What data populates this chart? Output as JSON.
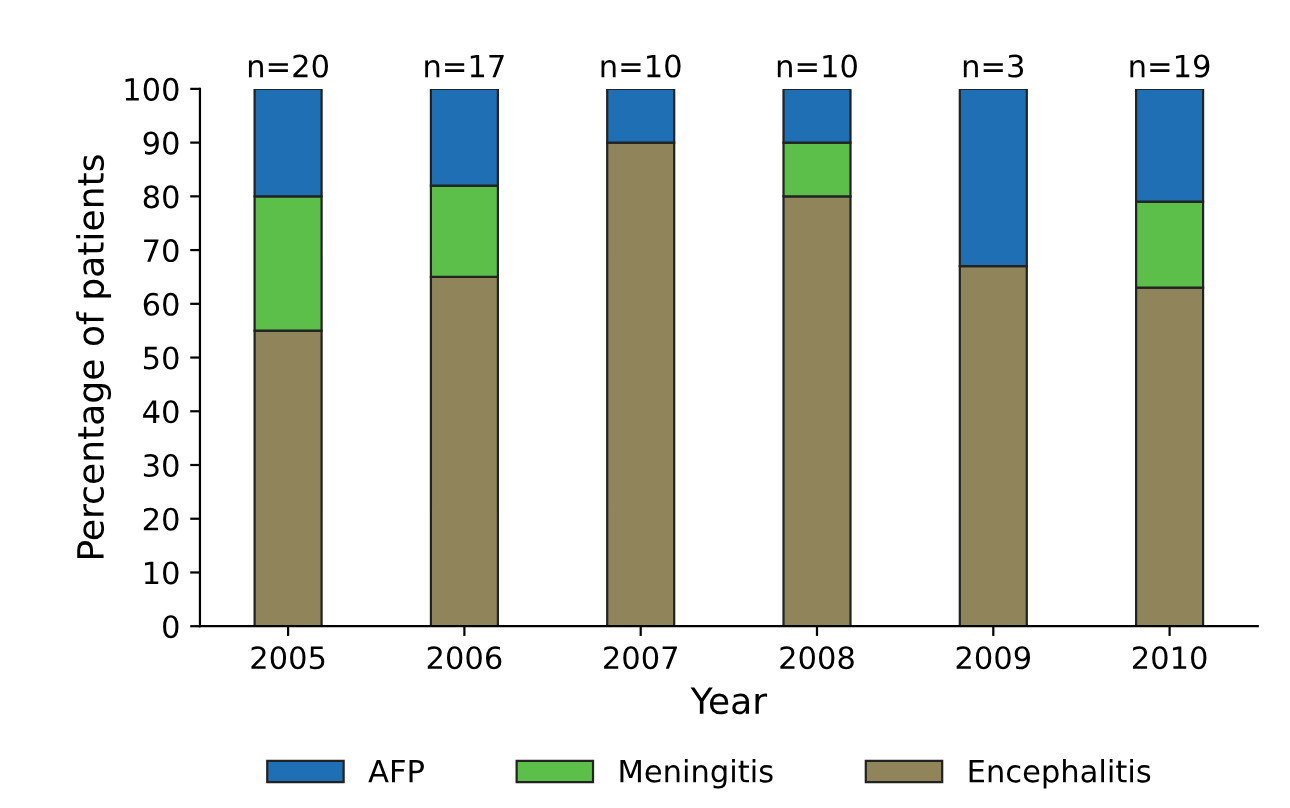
{
  "chart_data": {
    "type": "bar",
    "stacked": true,
    "xlabel": "Year",
    "ylabel": "Percentage of patients",
    "categories": [
      "2005",
      "2006",
      "2007",
      "2008",
      "2009",
      "2010"
    ],
    "series": [
      {
        "name": "Encephalitis",
        "color": "#8f845a",
        "values": [
          55,
          65,
          90,
          80,
          67,
          63
        ]
      },
      {
        "name": "Meningitis",
        "color": "#5cbf4a",
        "values": [
          25,
          17,
          null,
          10,
          null,
          16
        ]
      },
      {
        "name": "AFP",
        "color": "#1f6fb4",
        "values": [
          20,
          18,
          10,
          10,
          33,
          21
        ]
      }
    ],
    "annotations": [
      {
        "text": "n=20",
        "x": "2005",
        "y": 100
      },
      {
        "text": "n=17",
        "x": "2006",
        "y": 100
      },
      {
        "text": "n=10",
        "x": "2007",
        "y": 100
      },
      {
        "text": "n=10",
        "x": "2008",
        "y": 100
      },
      {
        "text": "n=3",
        "x": "2009",
        "y": 100
      },
      {
        "text": "n=19",
        "x": "2010",
        "y": 100
      }
    ],
    "ylim": [
      0,
      100
    ],
    "yticks": [
      0,
      10,
      20,
      30,
      40,
      50,
      60,
      70,
      80,
      90,
      100
    ],
    "grid": false,
    "legend": "bottom"
  }
}
